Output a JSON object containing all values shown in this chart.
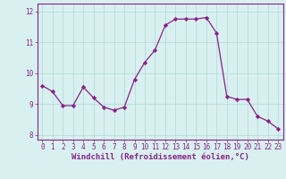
{
  "x": [
    0,
    1,
    2,
    3,
    4,
    5,
    6,
    7,
    8,
    9,
    10,
    11,
    12,
    13,
    14,
    15,
    16,
    17,
    18,
    19,
    20,
    21,
    22,
    23
  ],
  "y": [
    9.6,
    9.4,
    8.95,
    8.95,
    9.55,
    9.2,
    8.9,
    8.8,
    8.9,
    9.8,
    10.35,
    10.75,
    11.55,
    11.75,
    11.75,
    11.75,
    11.8,
    11.3,
    9.25,
    9.15,
    9.15,
    8.6,
    8.45,
    8.2
  ],
  "line_color": "#882288",
  "marker": "D",
  "markersize": 2.2,
  "linewidth": 0.9,
  "xlabel": "Windchill (Refroidissement éolien,°C)",
  "xlabel_fontsize": 6.5,
  "xlim": [
    -0.5,
    23.5
  ],
  "ylim": [
    7.85,
    12.25
  ],
  "yticks": [
    8,
    9,
    10,
    11,
    12
  ],
  "xticks": [
    0,
    1,
    2,
    3,
    4,
    5,
    6,
    7,
    8,
    9,
    10,
    11,
    12,
    13,
    14,
    15,
    16,
    17,
    18,
    19,
    20,
    21,
    22,
    23
  ],
  "xtick_labels": [
    "0",
    "1",
    "2",
    "3",
    "4",
    "5",
    "6",
    "7",
    "8",
    "9",
    "10",
    "11",
    "12",
    "13",
    "14",
    "15",
    "16",
    "17",
    "18",
    "19",
    "20",
    "21",
    "22",
    "23"
  ],
  "tick_fontsize": 5.5,
  "background_color": "#d8f0f0",
  "grid_color": "#b0d8d8",
  "grid_linewidth": 0.5
}
